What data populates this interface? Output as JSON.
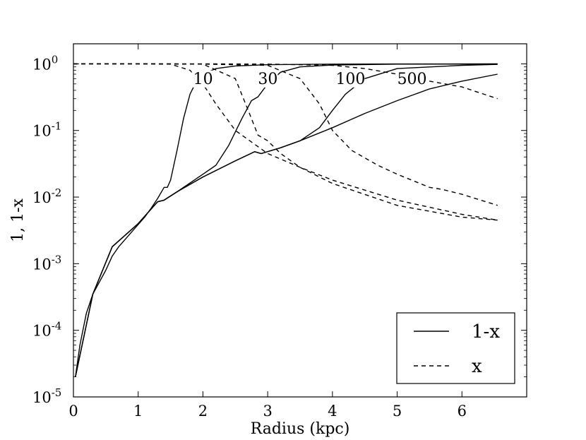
{
  "chart_data": {
    "type": "line",
    "xlabel": "Radius (kpc)",
    "ylabel": "1, 1-x",
    "xlim": [
      0,
      7
    ],
    "ylim": [
      1e-05,
      2
    ],
    "yscale": "log",
    "x_ticks": [
      0,
      1,
      2,
      3,
      4,
      5,
      6
    ],
    "y_ticks": [
      {
        "value": 1e-05,
        "base": "10",
        "exp": "-5"
      },
      {
        "value": 0.0001,
        "base": "10",
        "exp": "-4"
      },
      {
        "value": 0.001,
        "base": "10",
        "exp": "-3"
      },
      {
        "value": 0.01,
        "base": "10",
        "exp": "-2"
      },
      {
        "value": 0.1,
        "base": "10",
        "exp": "-1"
      },
      {
        "value": 1,
        "base": "10",
        "exp": "0"
      }
    ],
    "legend": {
      "position": "lower-right",
      "entries": [
        {
          "label": "1-x",
          "style": "solid"
        },
        {
          "label": "x",
          "style": "dashed"
        }
      ]
    },
    "annotations": [
      {
        "text": "10",
        "x": 1.85,
        "y": 0.5
      },
      {
        "text": "30",
        "x": 2.85,
        "y": 0.5
      },
      {
        "text": "100",
        "x": 4.05,
        "y": 0.5
      },
      {
        "text": "500",
        "x": 5.0,
        "y": 0.5
      }
    ],
    "series": [
      {
        "style": "solid",
        "x": [
          0.03,
          0.1,
          0.2,
          0.3,
          0.5,
          0.6,
          0.7,
          0.9,
          1.1,
          1.2,
          1.3,
          1.4,
          1.45,
          1.5,
          1.6,
          1.7,
          1.8,
          1.9,
          2.0,
          2.2,
          2.5,
          3.0,
          4.0,
          5.0,
          6.55
        ],
        "y": [
          2e-05,
          6e-05,
          0.00018,
          0.00035,
          0.0008,
          0.0013,
          0.0018,
          0.003,
          0.005,
          0.0068,
          0.0095,
          0.014,
          0.014,
          0.018,
          0.05,
          0.15,
          0.35,
          0.55,
          0.7,
          0.85,
          0.93,
          0.97,
          0.99,
          0.995,
          0.998
        ]
      },
      {
        "style": "dashed",
        "x": [
          0.0,
          0.5,
          1.0,
          1.5,
          1.8,
          2.0,
          2.2,
          2.5,
          3.0,
          3.5,
          4.0,
          5.0,
          6.0,
          6.55
        ],
        "y": [
          1.0,
          1.0,
          1.0,
          0.99,
          0.8,
          0.5,
          0.25,
          0.1,
          0.045,
          0.028,
          0.018,
          0.009,
          0.0055,
          0.0045
        ]
      },
      {
        "style": "solid",
        "x": [
          0.03,
          0.3,
          0.6,
          1.0,
          1.3,
          1.4,
          1.6,
          2.0,
          2.2,
          2.4,
          2.6,
          2.75,
          2.85,
          3.0,
          3.2,
          3.5,
          4.0,
          5.0,
          6.55
        ],
        "y": [
          2e-05,
          0.00035,
          0.0018,
          0.004,
          0.0085,
          0.009,
          0.012,
          0.022,
          0.03,
          0.06,
          0.15,
          0.28,
          0.32,
          0.5,
          0.75,
          0.9,
          0.96,
          0.99,
          0.995
        ]
      },
      {
        "style": "dashed",
        "x": [
          0.0,
          1.0,
          2.0,
          2.5,
          2.7,
          2.85,
          3.0,
          3.2,
          3.5,
          4.0,
          5.0,
          6.0,
          6.55
        ],
        "y": [
          1.0,
          1.0,
          0.99,
          0.6,
          0.2,
          0.085,
          0.07,
          0.045,
          0.028,
          0.016,
          0.0075,
          0.005,
          0.0045
        ]
      },
      {
        "style": "solid",
        "x": [
          0.03,
          0.3,
          0.6,
          1.0,
          1.3,
          1.4,
          1.6,
          2.0,
          2.5,
          2.8,
          2.9,
          3.2,
          3.5,
          3.8,
          4.0,
          4.2,
          4.5,
          5.0,
          6.0,
          6.55
        ],
        "y": [
          2e-05,
          0.00035,
          0.0018,
          0.004,
          0.0085,
          0.009,
          0.012,
          0.02,
          0.035,
          0.048,
          0.045,
          0.055,
          0.07,
          0.11,
          0.2,
          0.35,
          0.6,
          0.85,
          0.95,
          0.98
        ]
      },
      {
        "style": "dashed",
        "x": [
          0.0,
          1.0,
          2.0,
          3.0,
          3.5,
          3.8,
          4.0,
          4.3,
          4.7,
          5.0,
          5.5,
          5.7,
          6.0,
          6.55
        ],
        "y": [
          1.0,
          1.0,
          0.99,
          0.95,
          0.6,
          0.25,
          0.1,
          0.05,
          0.03,
          0.022,
          0.014,
          0.013,
          0.011,
          0.0075
        ]
      },
      {
        "style": "solid",
        "x": [
          0.03,
          0.3,
          0.6,
          1.0,
          1.3,
          1.4,
          1.6,
          2.0,
          2.5,
          2.8,
          2.9,
          3.2,
          3.5,
          4.0,
          4.5,
          5.0,
          5.5,
          6.0,
          6.55
        ],
        "y": [
          2e-05,
          0.00035,
          0.0018,
          0.004,
          0.0085,
          0.009,
          0.012,
          0.02,
          0.035,
          0.048,
          0.045,
          0.055,
          0.07,
          0.11,
          0.18,
          0.28,
          0.42,
          0.55,
          0.7
        ]
      },
      {
        "style": "dashed",
        "x": [
          0.0,
          1.0,
          2.0,
          3.0,
          4.0,
          4.5,
          5.0,
          5.5,
          6.0,
          6.55
        ],
        "y": [
          1.0,
          1.0,
          1.0,
          0.99,
          0.95,
          0.85,
          0.7,
          0.55,
          0.45,
          0.3
        ]
      }
    ]
  }
}
